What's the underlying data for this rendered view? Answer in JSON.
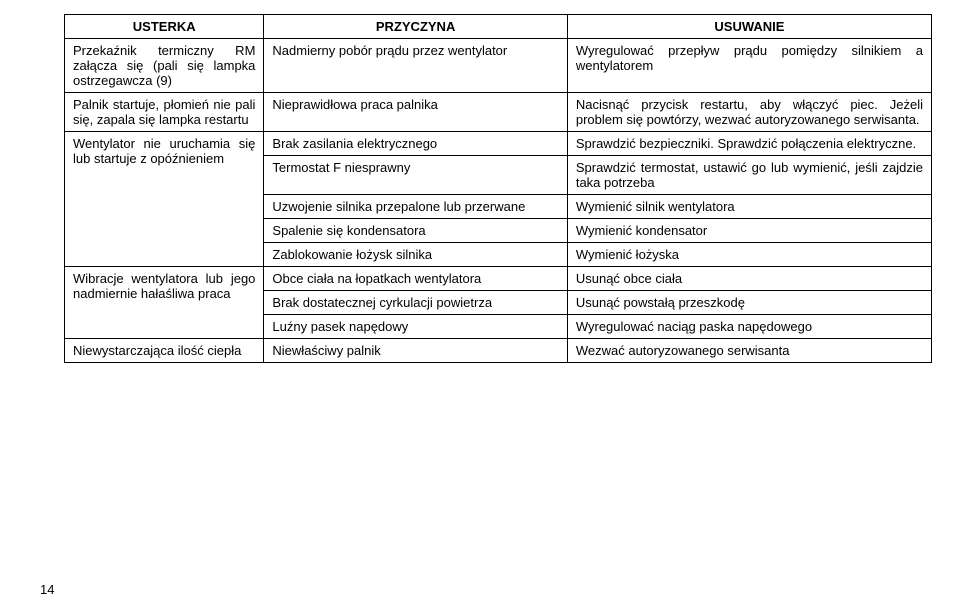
{
  "columns": {
    "c0": "USTERKA",
    "c1": "PRZYCZYNA",
    "c2": "USUWANIE"
  },
  "rows": {
    "r0": {
      "fault": "Przekaźnik termiczny RM załącza się (pali się lampka ostrzegawcza (9)",
      "cause": "Nadmierny pobór prądu przez wentylator",
      "remedy": "Wyregulować przepływ prądu pomiędzy silnikiem a wentylatorem"
    },
    "r1": {
      "fault": "Palnik startuje, płomień nie pali się, zapala się lampka restartu",
      "cause": "Nieprawidłowa praca palnika",
      "remedy": "Nacisnąć przycisk restartu, aby włączyć piec. Jeżeli problem się powtórzy, wezwać autoryzowanego serwisanta."
    },
    "r2": {
      "fault": "Wentylator nie uruchamia się lub startuje z opóźnieniem",
      "cause1": "Brak zasilania elektrycznego",
      "remedy1": "Sprawdzić bezpieczniki. Sprawdzić połączenia elektryczne.",
      "cause2": "Termostat F niesprawny",
      "remedy2": "Sprawdzić termostat, ustawić go lub wymienić, jeśli zajdzie taka potrzeba",
      "cause3": "Uzwojenie silnika przepalone lub przerwane",
      "remedy3": "Wymienić silnik wentylatora",
      "cause4": "Spalenie się kondensatora",
      "remedy4": "Wymienić kondensator",
      "cause5": "Zablokowanie łożysk silnika",
      "remedy5": "Wymienić łożyska"
    },
    "r3": {
      "fault": "Wibracje wentylatora lub jego nadmiernie hałaśliwa praca",
      "cause1": "Obce ciała na łopatkach wentylatora",
      "remedy1": "Usunąć obce ciała",
      "cause2": "Brak dostatecznej cyrkulacji powietrza",
      "remedy2": "Usunąć powstałą przeszkodę",
      "cause3": "Luźny pasek napędowy",
      "remedy3": "Wyregulować naciąg paska napędowego"
    },
    "r4": {
      "fault": "Niewystarczająca ilość ciepła",
      "cause": "Niewłaściwy palnik",
      "remedy": "Wezwać autoryzowanego serwisanta"
    }
  },
  "pageNumber": "14",
  "colWidths": {
    "c0": "23%",
    "c1": "35%",
    "c2": "42%"
  }
}
